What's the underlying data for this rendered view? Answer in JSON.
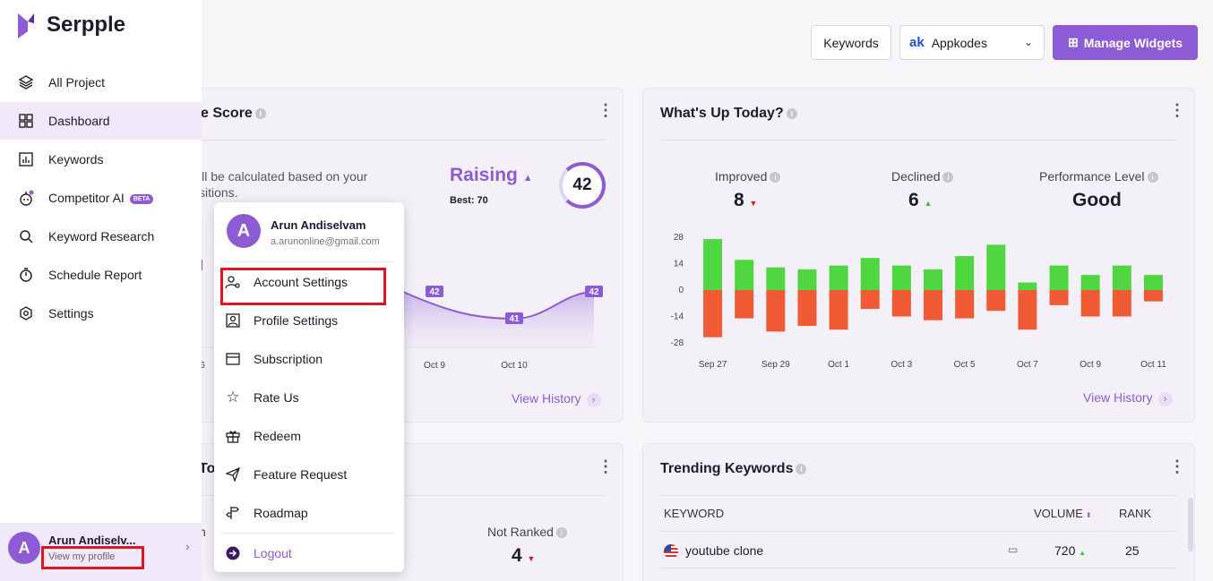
{
  "header": {
    "title_fragment": "rd",
    "subtitle_fragment": "n",
    "keywords_button": "Keywords",
    "project": {
      "logo": "ak",
      "name": "Appkodes"
    },
    "manage_widgets": "Manage Widgets"
  },
  "score_card": {
    "title_fragment": "e Score",
    "description": "ill be calculated based on your sitions.",
    "trend": "Raising",
    "best": "Best: 70",
    "score": "42",
    "x_labels": [
      "6",
      "Oct 9",
      "Oct 10"
    ],
    "point_labels": [
      "42",
      "41",
      "42"
    ],
    "view_history": "View History"
  },
  "whats_up": {
    "title": "What's Up Today?",
    "improved_label": "Improved",
    "improved_value": "8",
    "declined_label": "Declined",
    "declined_value": "6",
    "performance_label": "Performance Level",
    "performance_value": "Good",
    "view_history": "View History"
  },
  "chart_data": {
    "type": "bar",
    "categories": [
      "Sep 27",
      "Sep 28",
      "Sep 29",
      "Sep 30",
      "Oct 1",
      "Oct 2",
      "Oct 3",
      "Oct 4",
      "Oct 5",
      "Oct 6",
      "Oct 7",
      "Oct 8",
      "Oct 9",
      "Oct 10",
      "Oct 11"
    ],
    "tick_labels_x": [
      "Sep 27",
      "Sep 29",
      "Oct 1",
      "Oct 3",
      "Oct 5",
      "Oct 7",
      "Oct 9",
      "Oct 11"
    ],
    "series": [
      {
        "color": "#4fd640",
        "values": [
          27,
          16,
          12,
          11,
          13,
          17,
          13,
          11,
          18,
          24,
          4,
          13,
          8,
          13,
          8
        ]
      },
      {
        "color": "#f05a35",
        "values": [
          -25,
          -15,
          -22,
          -19,
          -21,
          -10,
          -14,
          -16,
          -15,
          -11,
          -21,
          -8,
          -14,
          -14,
          -6
        ]
      }
    ],
    "ylim": [
      -28,
      28
    ],
    "y_ticks": [
      28,
      14,
      0,
      -14,
      -28
    ],
    "grid": false
  },
  "bottom_left": {
    "title_fragment": "To",
    "not_ranked_label": "Not Ranked",
    "not_ranked_value": "4",
    "left_fragment": "n"
  },
  "trending": {
    "title": "Trending Keywords",
    "columns": [
      "KEYWORD",
      "VOLUME",
      "RANK"
    ],
    "rows": [
      {
        "keyword": "youtube clone",
        "volume": "720",
        "rank": "25"
      }
    ]
  },
  "sidebar": {
    "brand": "Serpple",
    "items": [
      {
        "label": "All Project",
        "icon": "layers-icon"
      },
      {
        "label": "Dashboard",
        "icon": "dashboard-icon"
      },
      {
        "label": "Keywords",
        "icon": "chart-icon"
      },
      {
        "label": "Competitor AI",
        "icon": "robot-icon",
        "badge": "BETA"
      },
      {
        "label": "Keyword Research",
        "icon": "search-icon"
      },
      {
        "label": "Schedule Report",
        "icon": "stopwatch-icon"
      },
      {
        "label": "Settings",
        "icon": "gear-icon"
      }
    ],
    "profile": {
      "initial": "A",
      "name": "Arun Andiselv...",
      "link": "View my profile"
    }
  },
  "menu": {
    "initial": "A",
    "name": "Arun Andiselvam",
    "email": "a.arunonline@gmail.com",
    "items": [
      {
        "label": "Account Settings",
        "icon": "account-settings-icon"
      },
      {
        "label": "Profile Settings",
        "icon": "profile-icon"
      },
      {
        "label": "Subscription",
        "icon": "card-icon"
      },
      {
        "label": "Rate Us",
        "icon": "star-icon"
      },
      {
        "label": "Redeem",
        "icon": "gift-icon"
      },
      {
        "label": "Feature Request",
        "icon": "send-icon"
      },
      {
        "label": "Roadmap",
        "icon": "signpost-icon"
      }
    ],
    "logout": "Logout"
  },
  "colors": {
    "accent": "#8e5bd6",
    "positive": "#4fd640",
    "negative": "#f05a35",
    "highlight": "#e0141e"
  }
}
